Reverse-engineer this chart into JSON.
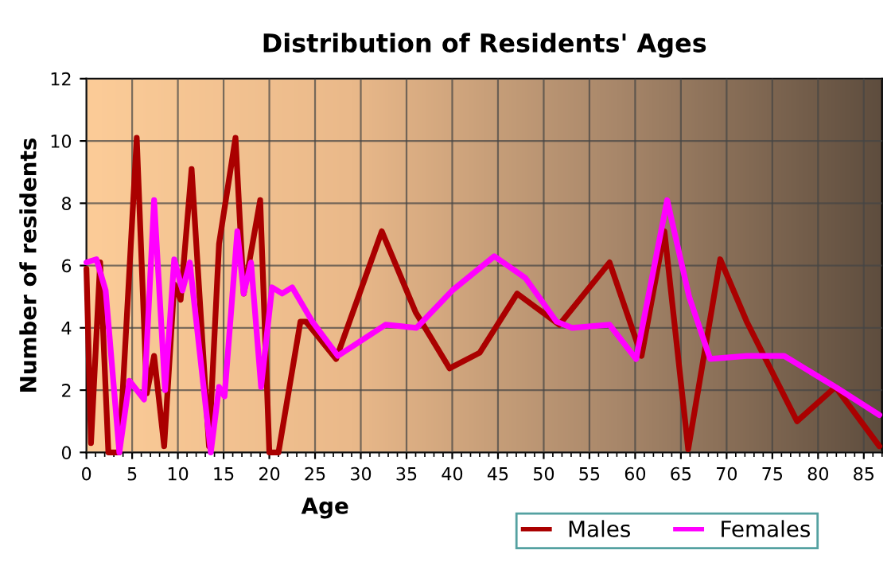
{
  "chart_data": {
    "type": "line",
    "title": "Distribution of Residents' Ages",
    "xlabel": "Age",
    "ylabel": "Number of residents",
    "series": [
      {
        "name": "Males",
        "color": "#aa0000",
        "x": [
          0,
          0.5,
          1.5,
          2.4,
          3.6,
          5.5,
          6.6,
          7.4,
          8.5,
          9.6,
          10.3,
          11.5,
          13.4,
          14.5,
          16.3,
          17.2,
          19,
          20,
          21,
          23.4,
          24,
          27.3,
          32.3,
          36,
          39.7,
          43,
          47.1,
          51.7,
          57.2,
          60.7,
          63.2,
          65.8,
          69.3,
          72.2,
          77.7,
          81.9,
          86.7
        ],
        "values": [
          5.9,
          0.3,
          6.1,
          0,
          0,
          10.1,
          1.9,
          3.1,
          0.2,
          5.4,
          4.9,
          9.1,
          0.2,
          6.7,
          10.1,
          5.1,
          8.1,
          0,
          0,
          4.2,
          4.2,
          3,
          7.1,
          4.5,
          2.7,
          3.2,
          5.1,
          4.1,
          6.1,
          3.1,
          7.1,
          0.1,
          6.2,
          4.2,
          1,
          2.1,
          0.2
        ]
      },
      {
        "name": "Females",
        "color": "#ff00ff",
        "x": [
          0,
          1.1,
          2.1,
          3.6,
          4.7,
          6.3,
          7.4,
          8.6,
          9.6,
          10.5,
          11.3,
          13.6,
          14.5,
          15.1,
          16.5,
          17.2,
          18,
          19.1,
          20.3,
          21.4,
          22.5,
          24.7,
          27.5,
          32.7,
          36.1,
          40,
          44.6,
          48,
          51.4,
          53.1,
          57.2,
          60.1,
          63.5,
          65.9,
          68.2,
          72.2,
          76.3,
          81.9,
          86.7
        ],
        "values": [
          6.1,
          6.2,
          5.2,
          0,
          2.3,
          1.7,
          8.1,
          2,
          6.2,
          5.2,
          6.1,
          0,
          2.1,
          1.8,
          7.1,
          5.1,
          6.1,
          2.1,
          5.3,
          5.1,
          5.3,
          4.2,
          3.1,
          4.1,
          4,
          5.2,
          6.3,
          5.6,
          4.2,
          4,
          4.1,
          3,
          8.1,
          5,
          3,
          3.1,
          3.1,
          2.1,
          1.2
        ]
      }
    ],
    "xlim": [
      0,
      87
    ],
    "ylim": [
      0,
      12
    ],
    "xticks": [
      0,
      5,
      10,
      15,
      20,
      25,
      30,
      35,
      40,
      45,
      50,
      55,
      60,
      65,
      70,
      75,
      80,
      85
    ],
    "yticks": [
      0,
      2,
      4,
      6,
      8,
      10,
      12
    ],
    "grid": true,
    "legend": "bottom right",
    "marker": "none",
    "line_style": "solid"
  }
}
